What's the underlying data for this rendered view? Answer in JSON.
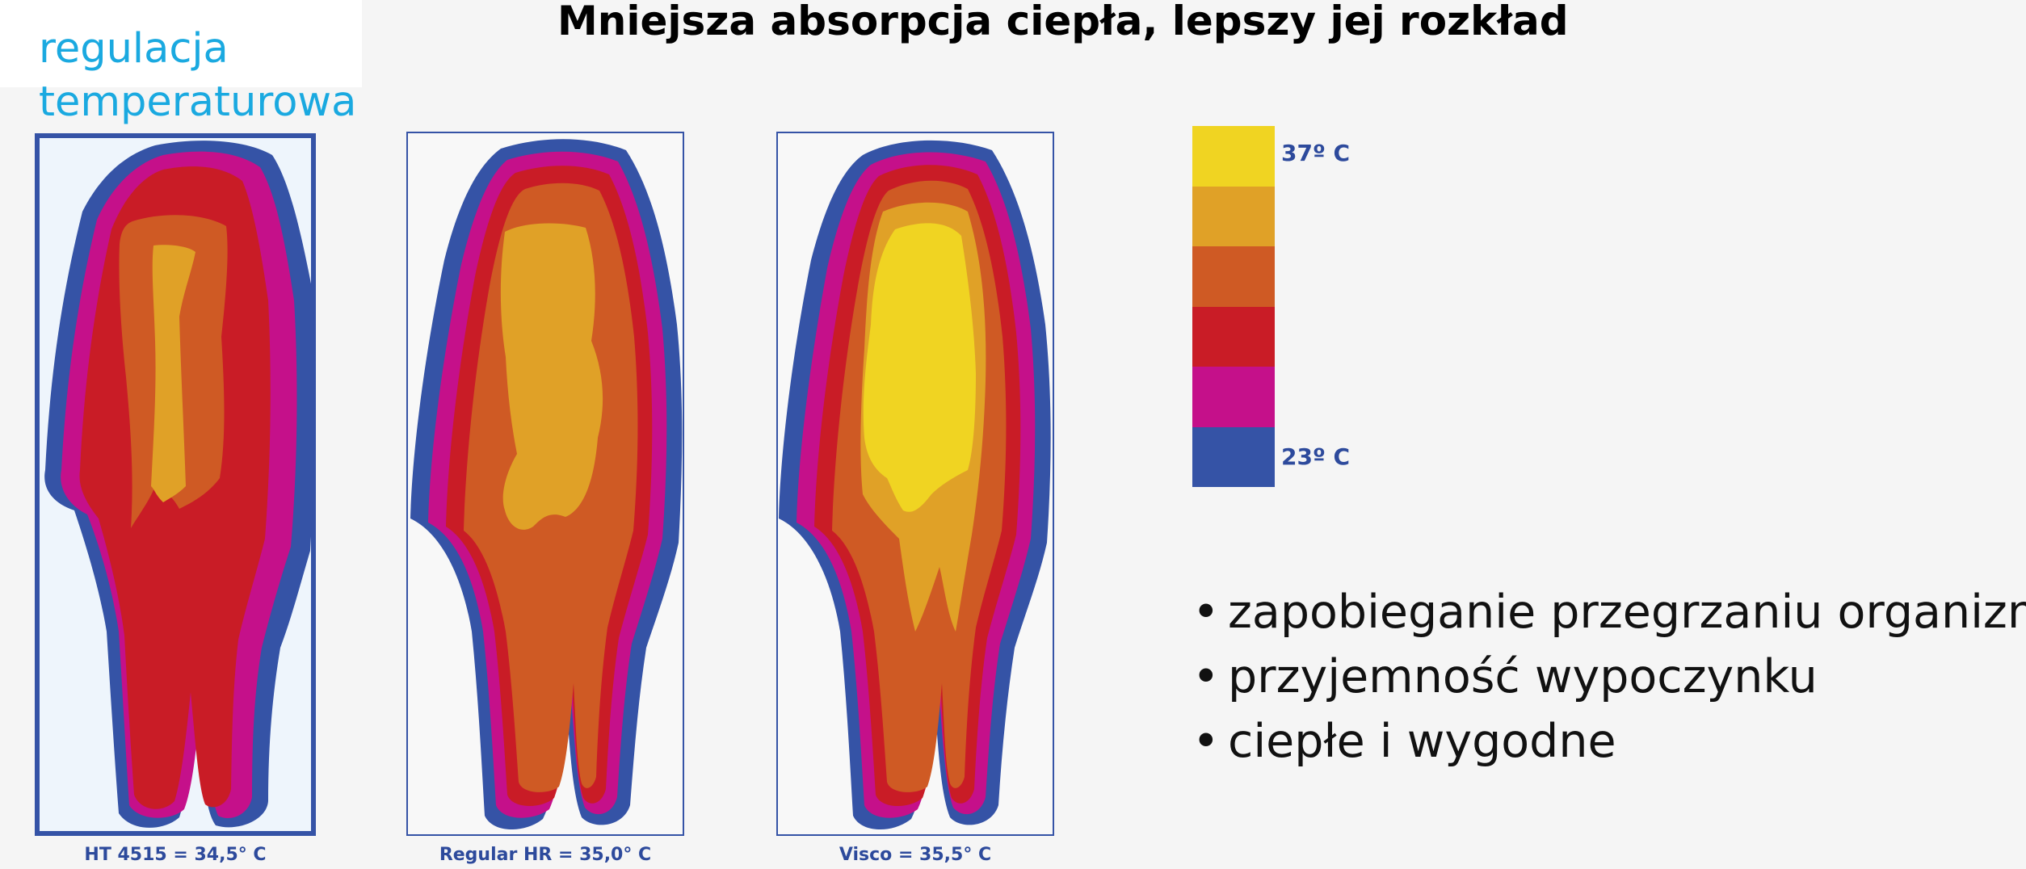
{
  "tag": {
    "line1": "regulacja",
    "line2": "temperaturowa"
  },
  "title": "Mniejsza absorpcja ciepła, lepszy jej rozkład",
  "panels": [
    {
      "caption": "HT 4515 = 34,5° C"
    },
    {
      "caption": "Regular HR = 35,0° C"
    },
    {
      "caption": "Visco = 35,5° C"
    }
  ],
  "legend": {
    "top_label": "37º C",
    "bottom_label": "23º C",
    "colors": [
      "#f0d422",
      "#e0a127",
      "#cf5a24",
      "#c91c26",
      "#c5108a",
      "#3553a6"
    ]
  },
  "bullets": [
    "zapobieganie przegrzaniu organizmu",
    "przyjemność wypoczynku",
    "ciepłe i wygodne"
  ],
  "colors": {
    "blue": "#3553a6",
    "magenta": "#c5108a",
    "red": "#c91c26",
    "orange": "#cf5a24",
    "amber": "#e0a127",
    "yellow": "#f0d422",
    "tag_color": "#1aa9e0",
    "caption_color": "#2d4a9c"
  }
}
